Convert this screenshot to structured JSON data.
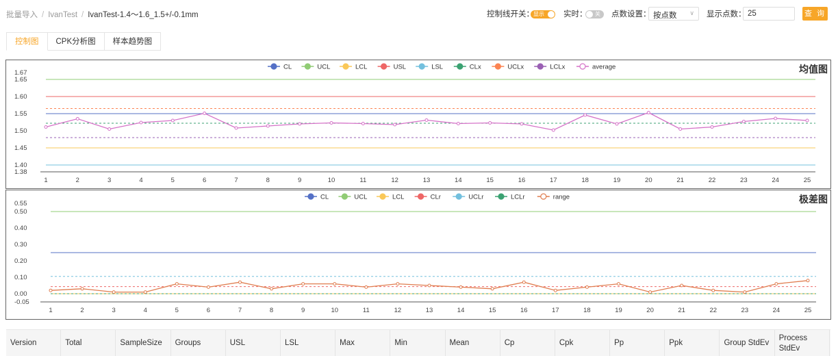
{
  "breadcrumb": {
    "items": [
      "批量导入",
      "IvanTest"
    ],
    "current": "IvanTest-1.4～1.6_1.5+/-0.1mm"
  },
  "controls": {
    "control_line_label": "控制线开关：",
    "control_line_toggle": "显示",
    "realtime_label": "实时：",
    "realtime_toggle": "关",
    "point_setting_label": "点数设置：",
    "point_setting_value": "按点数",
    "display_count_label": "显示点数：",
    "display_count_value": "25",
    "query_button": "查 询"
  },
  "tabs": [
    {
      "label": "控制图",
      "active": true
    },
    {
      "label": "CPK分析图",
      "active": false
    },
    {
      "label": "样本趋势图",
      "active": false
    }
  ],
  "colors": {
    "accent": "#f7a628"
  },
  "chart_data": [
    {
      "type": "line",
      "title": "均值图",
      "legend": [
        "CL",
        "UCL",
        "LCL",
        "USL",
        "LSL",
        "CLx",
        "UCLx",
        "LCLx",
        "average"
      ],
      "legend_placement": "top-center",
      "x": [
        1,
        2,
        3,
        4,
        5,
        6,
        7,
        8,
        9,
        10,
        11,
        12,
        13,
        14,
        15,
        16,
        17,
        18,
        19,
        20,
        21,
        22,
        23,
        24,
        25
      ],
      "yticks": [
        "1.67",
        "1.65",
        "1.60",
        "1.55",
        "1.50",
        "1.45",
        "1.40",
        "1.38"
      ],
      "ylim": [
        1.38,
        1.67
      ],
      "ref_lines": [
        {
          "name": "UCL",
          "value": 1.65,
          "color": "#91cc75",
          "dash": false
        },
        {
          "name": "USL",
          "value": 1.6,
          "color": "#ee6666",
          "dash": false
        },
        {
          "name": "UCLx",
          "value": 1.565,
          "color": "#fc8452",
          "dash": true
        },
        {
          "name": "CL",
          "value": 1.55,
          "color": "#5470c6",
          "dash": false
        },
        {
          "name": "CLx",
          "value": 1.522,
          "color": "#3ba272",
          "dash": true
        },
        {
          "name": "LCLx",
          "value": 1.48,
          "color": "#9a60b4",
          "dash": true
        },
        {
          "name": "LCL",
          "value": 1.45,
          "color": "#fac858",
          "dash": false
        },
        {
          "name": "LSL",
          "value": 1.4,
          "color": "#73c0de",
          "dash": false
        }
      ],
      "series": [
        {
          "name": "average",
          "color": "#d572c8",
          "values": [
            1.511,
            1.535,
            1.505,
            1.524,
            1.53,
            1.551,
            1.508,
            1.514,
            1.52,
            1.523,
            1.521,
            1.518,
            1.531,
            1.521,
            1.523,
            1.52,
            1.502,
            1.546,
            1.52,
            1.553,
            1.505,
            1.511,
            1.527,
            1.536,
            1.53
          ]
        }
      ]
    },
    {
      "type": "line",
      "title": "极差图",
      "legend": [
        "CL",
        "UCL",
        "LCL",
        "CLr",
        "UCLr",
        "LCLr",
        "range"
      ],
      "legend_placement": "top-center",
      "x": [
        1,
        2,
        3,
        4,
        5,
        6,
        7,
        8,
        9,
        10,
        11,
        12,
        13,
        14,
        15,
        16,
        17,
        18,
        19,
        20,
        21,
        22,
        23,
        24,
        25
      ],
      "yticks": [
        "0.55",
        "0.50",
        "0.40",
        "0.30",
        "0.20",
        "0.10",
        "0.00",
        "-0.05"
      ],
      "ylim": [
        -0.05,
        0.55
      ],
      "ref_lines": [
        {
          "name": "UCL",
          "value": 0.5,
          "color": "#91cc75",
          "dash": false
        },
        {
          "name": "CL",
          "value": 0.25,
          "color": "#5470c6",
          "dash": false
        },
        {
          "name": "UCLr",
          "value": 0.105,
          "color": "#73c0de",
          "dash": true
        },
        {
          "name": "CLr",
          "value": 0.043,
          "color": "#ee6666",
          "dash": true
        },
        {
          "name": "LCL",
          "value": 0.0,
          "color": "#fac858",
          "dash": false
        },
        {
          "name": "LCLr",
          "value": 0.0,
          "color": "#3ba272",
          "dash": true
        }
      ],
      "series": [
        {
          "name": "range",
          "color": "#e07d4f",
          "values": [
            0.02,
            0.03,
            0.01,
            0.01,
            0.06,
            0.04,
            0.07,
            0.03,
            0.06,
            0.06,
            0.04,
            0.06,
            0.05,
            0.04,
            0.03,
            0.07,
            0.02,
            0.04,
            0.06,
            0.01,
            0.05,
            0.02,
            0.01,
            0.06,
            0.08
          ]
        }
      ]
    }
  ],
  "legend_colors": {
    "CL": "#5470c6",
    "UCL": "#91cc75",
    "LCL": "#fac858",
    "USL": "#ee6666",
    "LSL": "#73c0de",
    "CLx": "#3ba272",
    "UCLx": "#fc8452",
    "LCLx": "#9a60b4",
    "average": "#d572c8",
    "CLr": "#ee6666",
    "UCLr": "#73c0de",
    "LCLr": "#3ba272",
    "range": "#e07d4f"
  },
  "table": {
    "headers": [
      "Version",
      "Total",
      "SampleSize",
      "Groups",
      "USL",
      "LSL",
      "Max",
      "Min",
      "Mean",
      "Cp",
      "Cpk",
      "Pp",
      "Ppk",
      "Group StdEv",
      "Process StdEv"
    ]
  }
}
